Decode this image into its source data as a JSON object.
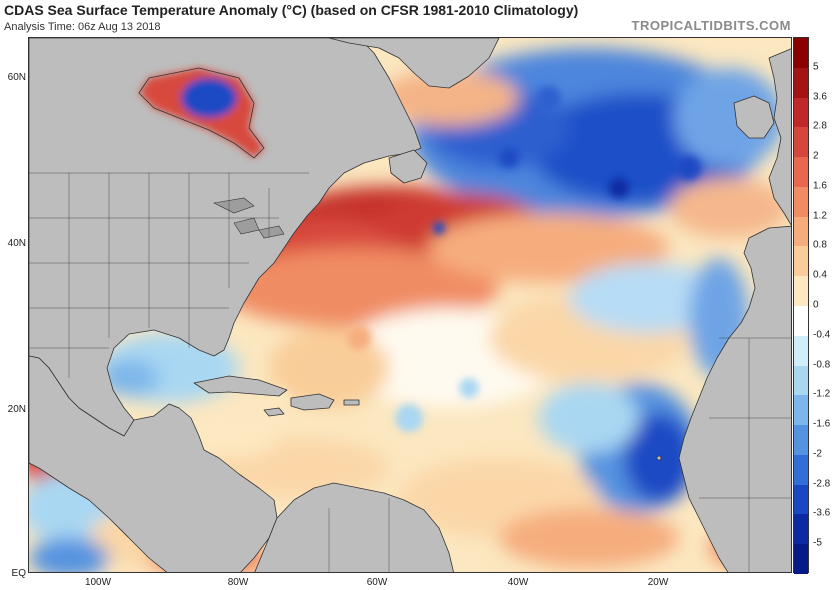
{
  "header": {
    "title": "CDAS Sea Surface Temperature Anomaly (°C) (based on CFSR 1981-2010 Climatology)",
    "analysis_time": "Analysis Time: 06z Aug 13 2018",
    "brand": "TROPICALTIDBITS.COM"
  },
  "map": {
    "lat_labels": [
      "60N",
      "40N",
      "20N",
      "EQ"
    ],
    "lon_labels": [
      "100W",
      "80W",
      "60W",
      "40W",
      "20W"
    ],
    "land_color": "#bdbdbd",
    "border_color": "#333333"
  },
  "colorbar": {
    "units": "°C",
    "labels": [
      "5",
      "3.6",
      "2.8",
      "2",
      "1.6",
      "1.2",
      "0.8",
      "0.4",
      "0",
      "-0.4",
      "-0.8",
      "-1.2",
      "-1.6",
      "-2",
      "-2.8",
      "-3.6",
      "-5"
    ],
    "colors": [
      "#8b0000",
      "#a51414",
      "#c0282a",
      "#d6463d",
      "#e8684f",
      "#f08c64",
      "#f6ad7e",
      "#f9cd99",
      "#fde8c1",
      "#ffffff",
      "#d0eefa",
      "#a9d7f2",
      "#7db6ea",
      "#5593e0",
      "#316ed6",
      "#1a48c4",
      "#0e2aa3",
      "#061a88"
    ]
  }
}
